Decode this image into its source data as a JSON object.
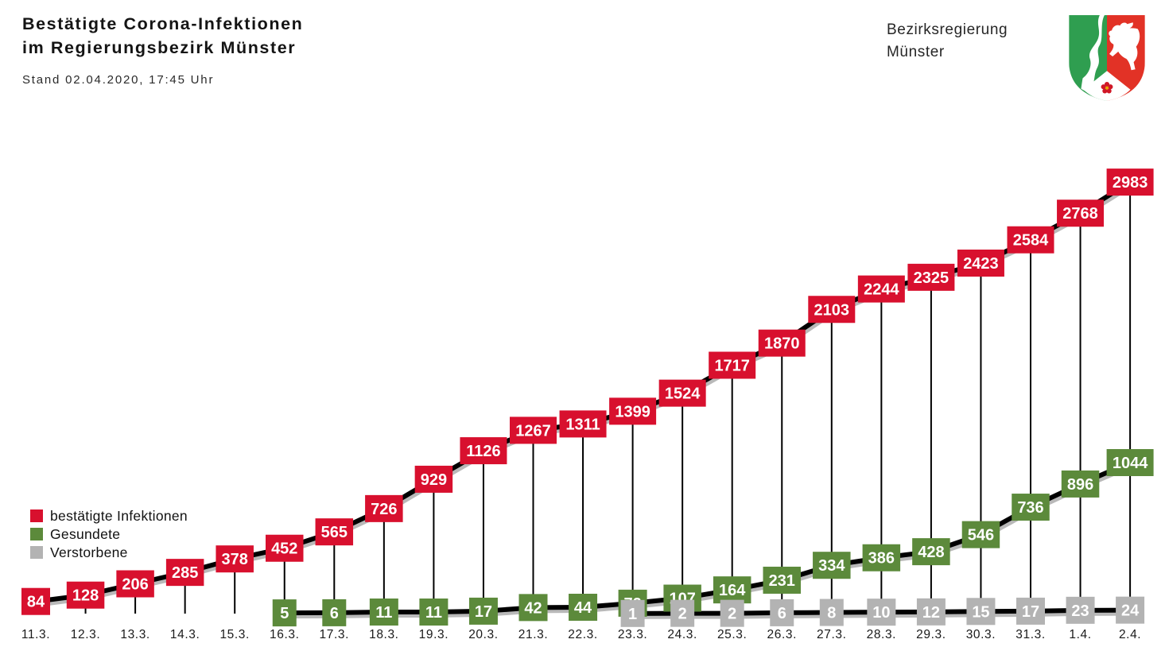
{
  "header": {
    "title_line1": "Bestätigte Corona-Infektionen",
    "title_line2": "im Regierungsbezirk Münster",
    "stand": "Stand 02.04.2020, 17:45 Uhr"
  },
  "brand": {
    "name_line1": "Bezirksregierung",
    "name_line2": "Münster",
    "logo": "nrw-coat-of-arms"
  },
  "legend": [
    {
      "label": "bestätigte Infektionen",
      "color": "#d8102e"
    },
    {
      "label": "Gesundete",
      "color": "#5c8a3b"
    },
    {
      "label": "Verstorbene",
      "color": "#b3b3b3"
    }
  ],
  "chart_data": {
    "type": "line",
    "title": "Bestätigte Corona-Infektionen im Regierungsbezirk Münster",
    "subtitle": "Stand 02.04.2020, 17:45 Uhr",
    "categories": [
      "11.3.",
      "12.3.",
      "13.3.",
      "14.3.",
      "15.3.",
      "16.3.",
      "17.3.",
      "18.3.",
      "19.3.",
      "20.3.",
      "21.3.",
      "22.3.",
      "23.3.",
      "24.3.",
      "25.3.",
      "26.3.",
      "27.3.",
      "28.3.",
      "29.3.",
      "30.3.",
      "31.3.",
      "1.4.",
      "2.4."
    ],
    "series": [
      {
        "name": "bestätigte Infektionen",
        "key": "infektionen",
        "color": "#d8102e",
        "start_index": 0,
        "values": [
          84,
          128,
          206,
          285,
          378,
          452,
          565,
          726,
          929,
          1126,
          1267,
          1311,
          1399,
          1524,
          1717,
          1870,
          2103,
          2244,
          2325,
          2423,
          2584,
          2768,
          2983
        ]
      },
      {
        "name": "Gesundete",
        "key": "gesundete",
        "color": "#5c8a3b",
        "start_index": 5,
        "values": [
          5,
          6,
          11,
          11,
          17,
          42,
          44,
          72,
          107,
          164,
          231,
          334,
          386,
          428,
          546,
          736,
          896,
          1044
        ]
      },
      {
        "name": "Verstorbene",
        "key": "verstorbene",
        "color": "#b3b3b3",
        "start_index": 12,
        "values": [
          1,
          2,
          2,
          6,
          8,
          10,
          12,
          15,
          17,
          23,
          24
        ]
      }
    ],
    "ylim": [
      0,
      3000
    ],
    "grid": false,
    "legend_position": "middle-left",
    "value_labels": "colored boxes on line",
    "line_color": "#000000",
    "line_shadow_color": "#b9b9b9",
    "value_text_color": "#ffffff"
  }
}
